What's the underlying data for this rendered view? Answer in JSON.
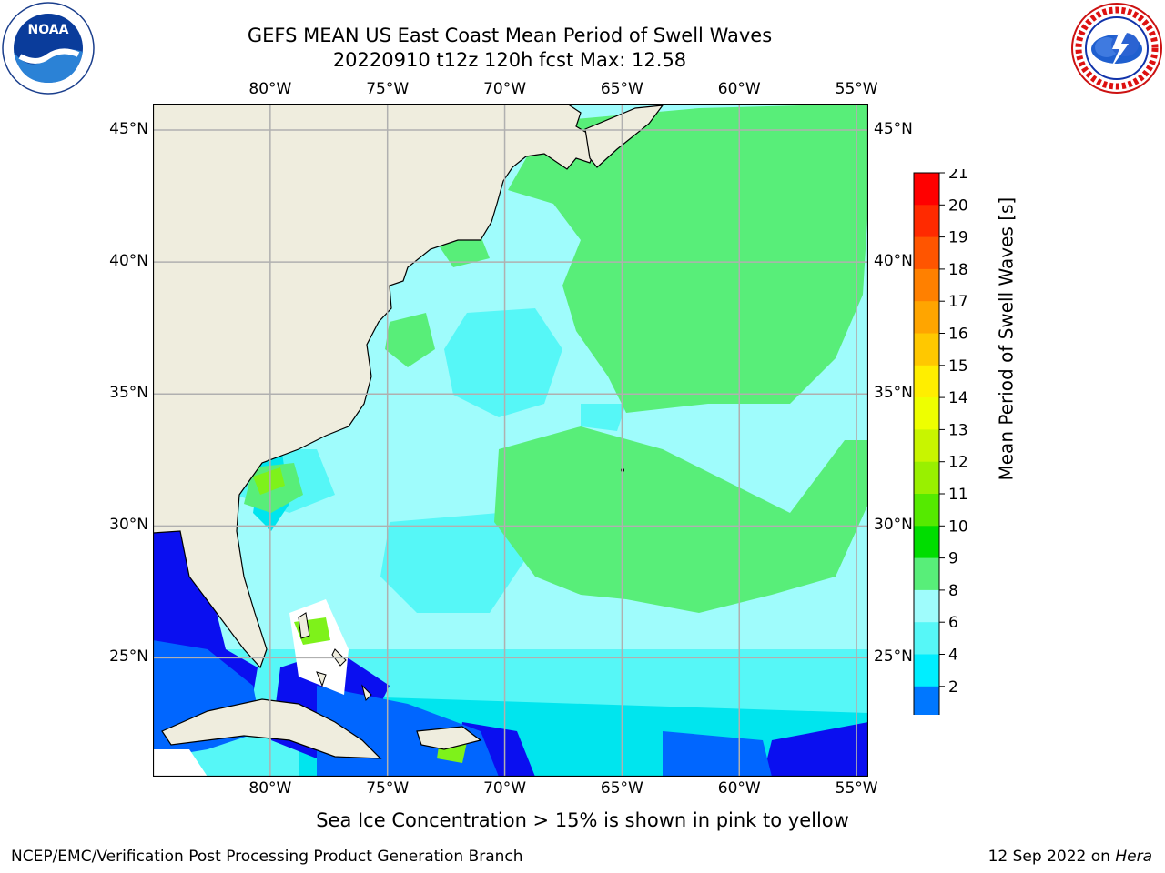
{
  "header": {
    "title_line1": "GEFS MEAN US East Coast Mean Period of Swell Waves",
    "title_line2": "20220910 t12z 120h fcst   Max: 12.58"
  },
  "logos": {
    "left": {
      "name": "noaa-logo",
      "text": "NOAA",
      "ring_text": "NATIONAL OCEANIC AND ATMOSPHERIC ADMINISTRATION · U.S. DEPARTMENT OF COMMERCE"
    },
    "right": {
      "name": "nws-logo",
      "ring_text": "NATIONAL WEATHER SERVICE"
    }
  },
  "map": {
    "lon_labels": [
      "80°W",
      "75°W",
      "70°W",
      "65°W",
      "60°W",
      "55°W"
    ],
    "lat_labels": [
      "45°N",
      "40°N",
      "35°N",
      "30°N",
      "25°N"
    ],
    "lon_range": [
      -85,
      -54.5
    ],
    "lat_range": [
      20.5,
      46
    ],
    "colors": {
      "land": "#efedde",
      "ocean_base": "#9ffcfc",
      "band_2_4": "#0a0ff0",
      "band_4_6": "#0066ff",
      "band_6_7": "#00e5ee",
      "band_7_8": "#56f7f7",
      "band_9_10": "#58ee79",
      "band_11_12": "#7ef21a",
      "grid": "#b0b0b0"
    }
  },
  "colorbar": {
    "label": "Mean Period of Swell Waves [s]",
    "ticks": [
      "21",
      "20",
      "19",
      "18",
      "17",
      "16",
      "15",
      "14",
      "13",
      "12",
      "11",
      "10",
      "9",
      "8",
      "6",
      "4",
      "2"
    ],
    "bands": [
      "#ff0000",
      "#ff2a00",
      "#ff5500",
      "#ff8000",
      "#ffa500",
      "#ffc800",
      "#ffee00",
      "#eeff00",
      "#c8f500",
      "#99f000",
      "#55ea00",
      "#00dd00",
      "#58ee79",
      "#9ffcfc",
      "#56f7f7",
      "#00eeff",
      "#0077ff"
    ],
    "extend_color": "#0a0ff0"
  },
  "footer": {
    "sea_ice_note": "Sea Ice Concentration > 15% is shown in pink to yellow",
    "credit": "NCEP/EMC/Verification Post Processing Product Generation Branch",
    "date_prefix": "12 Sep 2022 on ",
    "machine": "Hera"
  }
}
